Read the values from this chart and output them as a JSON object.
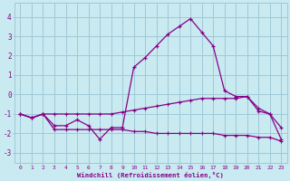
{
  "xlabel": "Windchill (Refroidissement éolien,°C)",
  "bg_color": "#c8eaf0",
  "grid_color": "#a0c8d8",
  "line_color": "#880088",
  "x_ticks": [
    0,
    1,
    2,
    3,
    4,
    5,
    6,
    7,
    8,
    9,
    10,
    11,
    12,
    13,
    14,
    15,
    16,
    17,
    18,
    19,
    20,
    21,
    22,
    23
  ],
  "yticks": [
    -3,
    -2,
    -1,
    0,
    1,
    2,
    3,
    4
  ],
  "ylim": [
    -3.5,
    4.7
  ],
  "xlim": [
    -0.5,
    23.5
  ],
  "line1_x": [
    0,
    1,
    2,
    3,
    4,
    5,
    6,
    7,
    8,
    9,
    10,
    11,
    12,
    13,
    14,
    15,
    16,
    17,
    18,
    19,
    20,
    21,
    22,
    23
  ],
  "line1_y": [
    -1.0,
    -1.2,
    -1.0,
    -1.6,
    -1.6,
    -1.3,
    -1.6,
    -2.3,
    -1.7,
    -1.7,
    1.4,
    1.9,
    2.5,
    3.1,
    3.5,
    3.9,
    3.2,
    2.5,
    0.2,
    -0.1,
    -0.1,
    -0.85,
    -1.0,
    -1.7
  ],
  "line2_x": [
    0,
    1,
    2,
    3,
    4,
    5,
    6,
    7,
    8,
    9,
    10,
    11,
    12,
    13,
    14,
    15,
    16,
    17,
    18,
    19,
    20,
    21,
    22,
    23
  ],
  "line2_y": [
    -1.0,
    -1.2,
    -1.0,
    -1.0,
    -1.0,
    -1.0,
    -1.0,
    -1.0,
    -1.0,
    -0.9,
    -0.8,
    -0.7,
    -0.6,
    -0.5,
    -0.4,
    -0.3,
    -0.2,
    -0.2,
    -0.2,
    -0.2,
    -0.1,
    -0.7,
    -1.0,
    -2.3
  ],
  "line3_x": [
    0,
    1,
    2,
    3,
    4,
    5,
    6,
    7,
    8,
    9,
    10,
    11,
    12,
    13,
    14,
    15,
    16,
    17,
    18,
    19,
    20,
    21,
    22,
    23
  ],
  "line3_y": [
    -1.0,
    -1.2,
    -1.0,
    -1.8,
    -1.8,
    -1.8,
    -1.8,
    -1.8,
    -1.8,
    -1.8,
    -1.9,
    -1.9,
    -2.0,
    -2.0,
    -2.0,
    -2.0,
    -2.0,
    -2.0,
    -2.1,
    -2.1,
    -2.1,
    -2.2,
    -2.2,
    -2.4
  ]
}
